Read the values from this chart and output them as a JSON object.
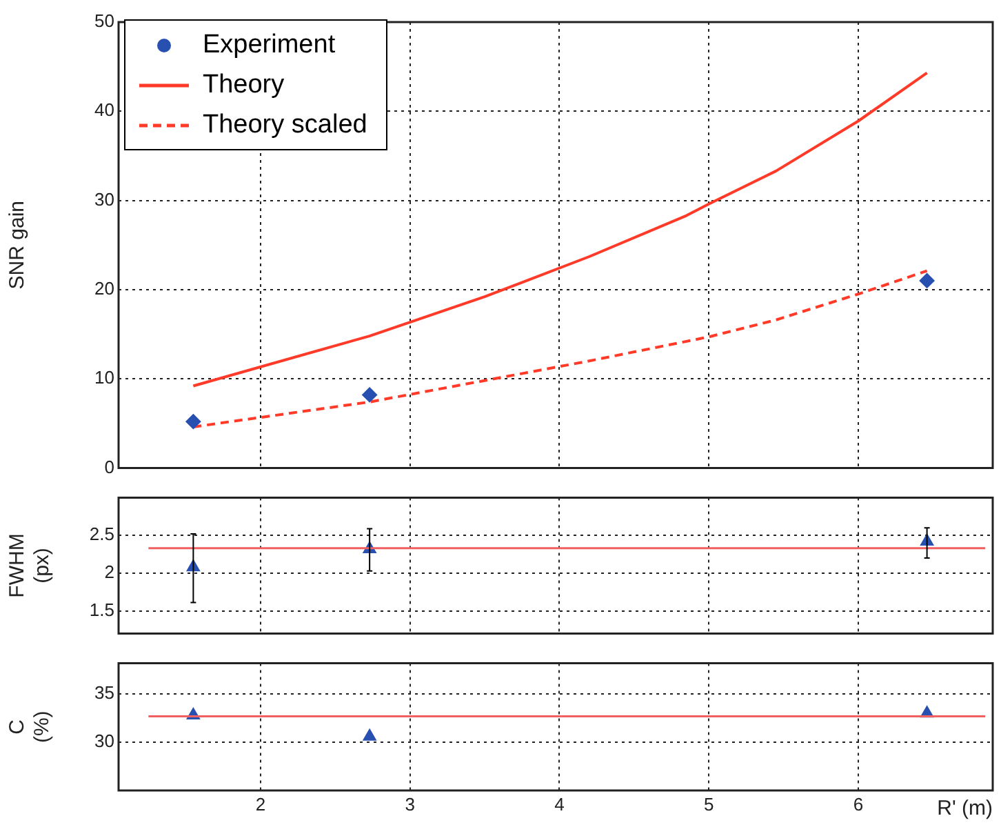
{
  "chart_data": [
    {
      "type": "line",
      "ylabel": "SNR gain",
      "xlim": [
        1.05,
        6.9
      ],
      "xticks": [
        2,
        3,
        4,
        5,
        6
      ],
      "ylim": [
        0,
        50
      ],
      "yticks": [
        0,
        10,
        20,
        30,
        40,
        50
      ],
      "grid": true,
      "legend": "top left",
      "tick_labels": "y",
      "series": [
        {
          "name": "Experiment",
          "type": "scatter",
          "marker": "diamond",
          "color": "#2850b0",
          "x": [
            1.55,
            2.73,
            6.46
          ],
          "values": [
            5.2,
            8.2,
            21
          ]
        },
        {
          "name": "Theory",
          "line_style": "solid",
          "color": "#ff3a28",
          "x": [
            1.55,
            2.73,
            3.5,
            4.2,
            4.85,
            5,
            5.45,
            6,
            6.46
          ],
          "values": [
            9.2,
            14.8,
            19.2,
            23.7,
            28.3,
            29.6,
            33.3,
            38.9,
            44.3
          ]
        },
        {
          "name": "Theory scaled",
          "line_style": "dashed",
          "color": "#ff3a28",
          "x": [
            1.55,
            2.73,
            3.5,
            4.2,
            5,
            5.45,
            6,
            6.46
          ],
          "values": [
            4.6,
            7.4,
            9.8,
            12,
            14.7,
            16.6,
            19.5,
            22.1
          ]
        }
      ]
    },
    {
      "type": "scatter",
      "ylabel": "FWHM (px)",
      "xlim": [
        1.05,
        6.9
      ],
      "xticks": [
        2,
        3,
        4,
        5,
        6
      ],
      "ylim": [
        1.2,
        3
      ],
      "yticks": [
        1.5,
        2,
        2.5
      ],
      "grid": true,
      "tick_labels": "y",
      "marker": "triangle",
      "series": [
        {
          "color": "#2850b0",
          "x": [
            1.55,
            2.73,
            6.46
          ],
          "values": [
            2.08,
            2.32,
            2.42
          ],
          "errors": [
            [
              1.61,
              2.52
            ],
            [
              2.03,
              2.59
            ],
            [
              2.2,
              2.6
            ]
          ]
        }
      ],
      "ref_lines": [
        {
          "axis": "y",
          "value": 2.33,
          "color": "#f06060"
        }
      ]
    },
    {
      "type": "scatter",
      "ylabel": "C (%)",
      "xlabel": "R' (m)",
      "xlim": [
        1.05,
        6.9
      ],
      "xticks": [
        2,
        3,
        4,
        5,
        6
      ],
      "ylim": [
        25,
        38.2
      ],
      "yticks": [
        30,
        35
      ],
      "grid": true,
      "marker": "triangle",
      "series": [
        {
          "color": "#2850b0",
          "x": [
            1.55,
            2.73,
            6.46
          ],
          "values": [
            32.8,
            30.6,
            33
          ]
        }
      ],
      "ref_lines": [
        {
          "axis": "y",
          "value": 32.7,
          "color": "#f06060"
        }
      ]
    }
  ]
}
